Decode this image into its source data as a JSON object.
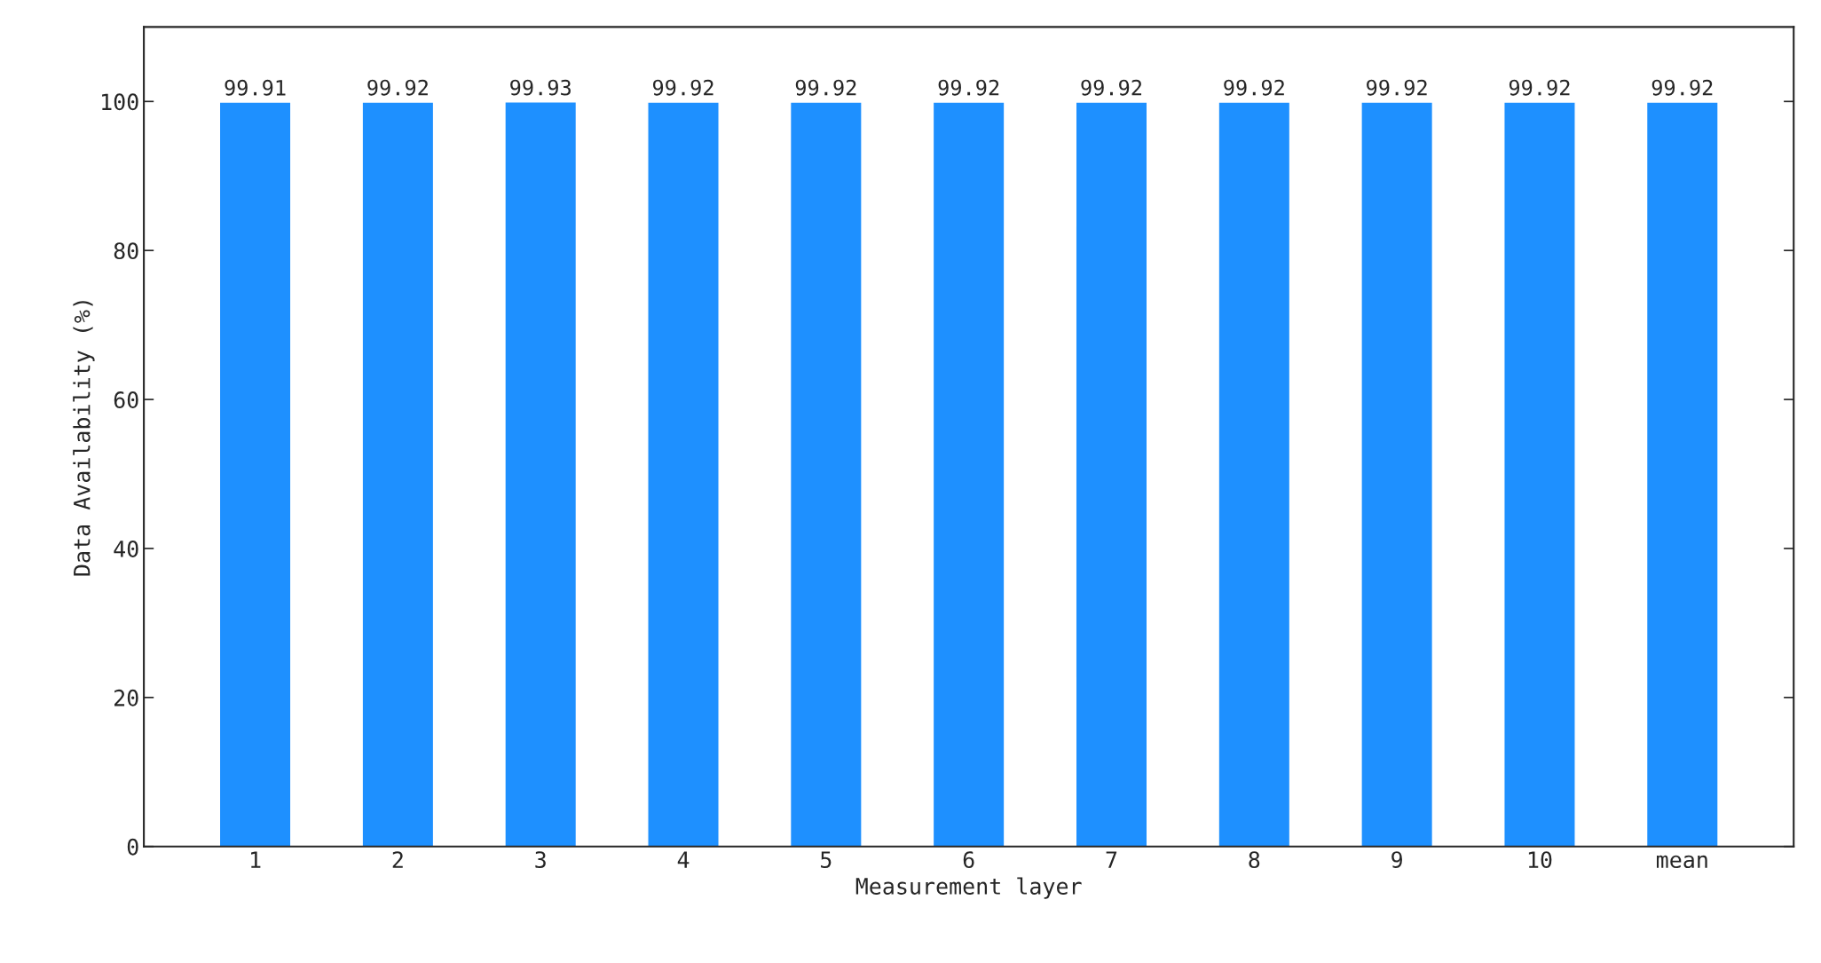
{
  "chart_data": {
    "type": "bar",
    "xlabel": "Measurement layer",
    "ylabel": "Data Availability (%)",
    "categories": [
      "1",
      "2",
      "3",
      "4",
      "5",
      "6",
      "7",
      "8",
      "9",
      "10",
      "mean"
    ],
    "values": [
      99.91,
      99.92,
      99.93,
      99.92,
      99.92,
      99.92,
      99.92,
      99.92,
      99.92,
      99.92,
      99.92
    ],
    "color": "#1e90ff",
    "ylim": [
      0,
      110
    ],
    "yticks": [
      0,
      20,
      40,
      60,
      80,
      100
    ],
    "data_labels": true,
    "grid": false,
    "legend": false
  }
}
